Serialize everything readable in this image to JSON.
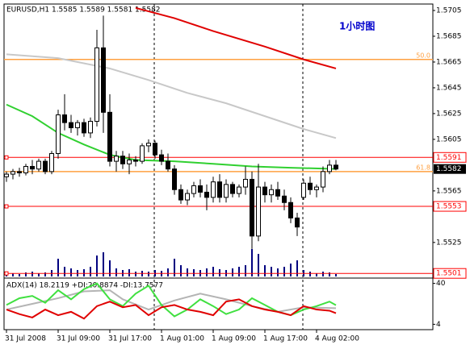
{
  "chart_data": [
    {
      "type": "candlestick",
      "title": "EURUSD,H1 1.5585 1.5589 1.5581 1.5582",
      "annotation": "1小时图",
      "categories": [
        "31 Jul 2008",
        null,
        null,
        null,
        null,
        null,
        null,
        null,
        "31 Jul 09:00",
        null,
        null,
        null,
        null,
        null,
        null,
        null,
        "31 Jul 17:00",
        null,
        null,
        null,
        null,
        null,
        null,
        null,
        "1 Aug 01:00",
        null,
        null,
        null,
        null,
        null,
        null,
        null,
        "1 Aug 09:00",
        null,
        null,
        null,
        null,
        null,
        null,
        null,
        "1 Aug 17:00",
        null,
        null,
        null,
        null,
        null,
        null,
        null,
        "4 Aug 02:00",
        null,
        null,
        null
      ],
      "open": [
        1.5576,
        1.5578,
        1.558,
        1.5579,
        1.5584,
        1.5582,
        1.5588,
        1.558,
        1.5594,
        1.5624,
        1.5618,
        1.5614,
        1.5618,
        1.561,
        1.5619,
        1.5676,
        1.5626,
        1.5588,
        1.5592,
        1.5586,
        1.5589,
        1.5588,
        1.56,
        1.5602,
        1.5593,
        1.5588,
        1.5582,
        1.5566,
        1.5558,
        1.5563,
        1.5569,
        1.5564,
        1.556,
        1.5572,
        1.556,
        1.557,
        1.5563,
        1.5568,
        1.5574,
        1.553,
        1.5568,
        1.5562,
        1.5566,
        1.5561,
        1.5556,
        1.5544,
        1.556,
        1.5571,
        1.5566,
        1.5568,
        1.558,
        1.5585
      ],
      "high": [
        1.558,
        1.5582,
        1.5583,
        1.5586,
        1.5589,
        1.559,
        1.559,
        1.5596,
        1.5628,
        1.564,
        1.5624,
        1.562,
        1.5621,
        1.5622,
        1.569,
        1.5701,
        1.564,
        1.5596,
        1.5596,
        1.5594,
        1.5592,
        1.5602,
        1.5605,
        1.5604,
        1.5597,
        1.5594,
        1.5585,
        1.557,
        1.5566,
        1.5572,
        1.5574,
        1.557,
        1.5576,
        1.5578,
        1.5574,
        1.5572,
        1.557,
        1.5584,
        1.558,
        1.5586,
        1.5572,
        1.557,
        1.5572,
        1.5566,
        1.556,
        1.5548,
        1.5574,
        1.5576,
        1.557,
        1.5584,
        1.5589,
        1.5589
      ],
      "low": [
        1.5572,
        1.5574,
        1.5576,
        1.5577,
        1.5578,
        1.558,
        1.5578,
        1.5578,
        1.559,
        1.5612,
        1.561,
        1.5608,
        1.5607,
        1.5606,
        1.5615,
        1.561,
        1.5584,
        1.558,
        1.5582,
        1.5578,
        1.5584,
        1.5586,
        1.5595,
        1.559,
        1.5585,
        1.558,
        1.5562,
        1.5555,
        1.5554,
        1.556,
        1.556,
        1.555,
        1.5556,
        1.5556,
        1.5556,
        1.556,
        1.556,
        1.5562,
        1.552,
        1.5526,
        1.5556,
        1.5556,
        1.5558,
        1.555,
        1.554,
        1.553,
        1.5558,
        1.5562,
        1.556,
        1.5564,
        1.5578,
        1.5581
      ],
      "close": [
        1.5578,
        1.558,
        1.5579,
        1.5584,
        1.5582,
        1.5588,
        1.558,
        1.5594,
        1.5624,
        1.5618,
        1.5614,
        1.5618,
        1.561,
        1.5619,
        1.5676,
        1.5626,
        1.5588,
        1.5592,
        1.5586,
        1.5589,
        1.5588,
        1.56,
        1.5602,
        1.5593,
        1.5588,
        1.5582,
        1.5566,
        1.5558,
        1.5563,
        1.5569,
        1.5564,
        1.556,
        1.5572,
        1.556,
        1.557,
        1.5563,
        1.5568,
        1.5574,
        1.553,
        1.5568,
        1.5562,
        1.5566,
        1.5561,
        1.5556,
        1.5544,
        1.5537,
        1.5571,
        1.5566,
        1.5568,
        1.558,
        1.5585,
        1.5582
      ],
      "up_color": "#ffffff",
      "down_color": "#000000",
      "volume": [
        3,
        4,
        3,
        5,
        6,
        4,
        5,
        8,
        22,
        12,
        10,
        8,
        9,
        12,
        26,
        30,
        20,
        10,
        8,
        9,
        6,
        7,
        6,
        8,
        7,
        10,
        22,
        14,
        10,
        9,
        8,
        10,
        12,
        9,
        8,
        10,
        12,
        14,
        34,
        28,
        14,
        12,
        10,
        12,
        16,
        20,
        8,
        6,
        4,
        6,
        5,
        3
      ],
      "volume_color": "#000080",
      "lines": [
        {
          "color": "#e00000",
          "x": [
            20,
            26,
            32,
            40,
            46,
            51
          ],
          "values": [
            1.5707,
            1.5699,
            1.5689,
            1.5677,
            1.5667,
            1.566
          ]
        },
        {
          "color": "#c8c8c8",
          "x": [
            0,
            8,
            16,
            22,
            28,
            34,
            40,
            46,
            51
          ],
          "values": [
            1.5671,
            1.5668,
            1.566,
            1.5651,
            1.5641,
            1.5633,
            1.5623,
            1.5613,
            1.5606
          ]
        },
        {
          "color": "#30d030",
          "x": [
            0,
            4,
            8,
            12,
            16,
            20,
            26,
            32,
            38,
            44,
            51
          ],
          "values": [
            1.5632,
            1.5623,
            1.561,
            1.5601,
            1.5593,
            1.5589,
            1.5588,
            1.5586,
            1.5584,
            1.5583,
            1.5582
          ]
        }
      ],
      "hlines": [
        {
          "value": 1.5591,
          "color": "#ff0000"
        },
        {
          "value": 1.5553,
          "color": "#ff0000"
        },
        {
          "value": 1.5501,
          "color": "#ff0000"
        }
      ],
      "fib_levels": [
        {
          "value": 1.5667,
          "label": "50.0",
          "color": "#ffa040"
        },
        {
          "value": 1.558,
          "label": "61.8",
          "color": "#ffa040"
        }
      ],
      "bid": 1.5582,
      "ylim": [
        1.5498,
        1.571
      ],
      "yticks": [
        1.5705,
        1.5685,
        1.5665,
        1.5645,
        1.5625,
        1.5605,
        1.5565,
        1.5525
      ]
    },
    {
      "type": "line",
      "title": "ADX(14) 18.2119 +DI:20.8874 -DI:13.7577",
      "series": [
        {
          "color": "#b4b4b4",
          "x": [
            0,
            4,
            8,
            12,
            16,
            18,
            22,
            26,
            30,
            34,
            38,
            42,
            46,
            51
          ],
          "values": [
            17,
            22,
            27,
            33,
            34,
            26,
            17,
            25,
            31,
            26,
            20,
            15,
            19,
            18.2119
          ]
        },
        {
          "color": "#40e040",
          "x": [
            0,
            2,
            4,
            6,
            8,
            10,
            12,
            14,
            16,
            18,
            20,
            22,
            24,
            26,
            28,
            30,
            32,
            34,
            36,
            38,
            40,
            42,
            44,
            46,
            48,
            50,
            51
          ],
          "values": [
            21,
            27,
            29,
            23,
            34,
            26,
            35,
            40,
            26,
            20,
            31,
            38,
            21,
            11,
            17,
            26,
            20,
            13,
            17,
            27,
            21,
            15,
            12,
            17,
            20,
            24,
            20.8874
          ]
        },
        {
          "color": "#e00000",
          "x": [
            0,
            2,
            4,
            6,
            8,
            10,
            12,
            14,
            16,
            18,
            20,
            22,
            24,
            26,
            28,
            30,
            32,
            34,
            36,
            38,
            40,
            42,
            44,
            46,
            48,
            50,
            51
          ],
          "values": [
            17,
            13,
            10,
            17,
            12,
            15,
            9,
            20,
            24,
            19,
            21,
            12,
            19,
            21,
            17,
            15,
            12,
            24,
            26,
            20,
            17,
            15,
            12,
            20,
            17,
            16,
            13.7577
          ]
        }
      ],
      "ylim": [
        0,
        44
      ],
      "yticks": [
        40,
        4
      ]
    }
  ]
}
